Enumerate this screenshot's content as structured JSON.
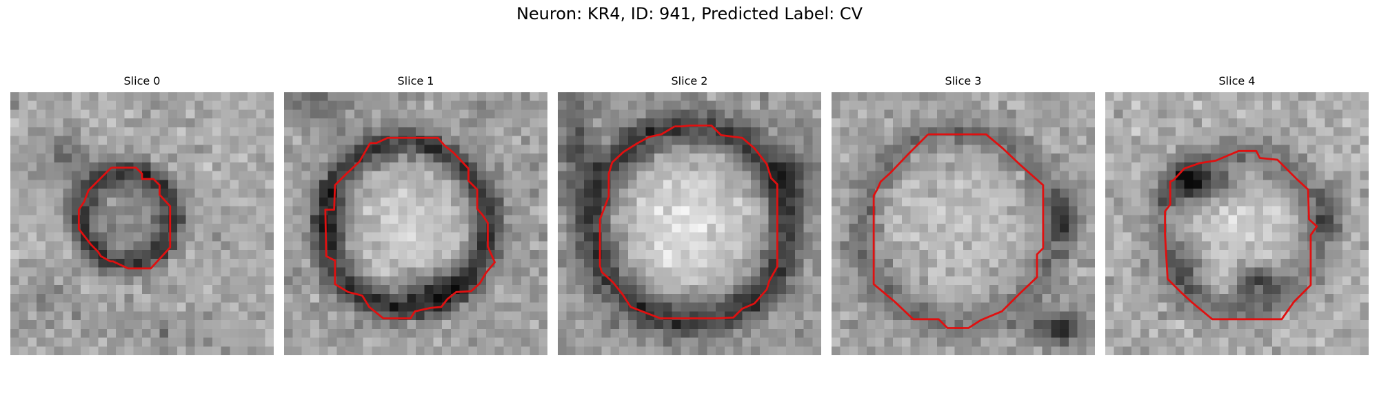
{
  "figure": {
    "title": "Neuron: KR4, ID: 941, Predicted Label: CV"
  },
  "colors": {
    "contour": "#e01010",
    "background": "#ffffff",
    "pixel_dark": "#111111",
    "pixel_light": "#f2f2f2"
  },
  "panels": [
    {
      "title": "Slice 0",
      "ring": "dark-ring-around-darker-disk",
      "seed": 11
    },
    {
      "title": "Slice 1",
      "ring": "dark-ring-around-bright-disk",
      "seed": 23
    },
    {
      "title": "Slice 2",
      "ring": "dark-ring-around-bright-disk",
      "seed": 37
    },
    {
      "title": "Slice 3",
      "ring": "faint-ring-around-bright-disk",
      "seed": 53
    },
    {
      "title": "Slice 4",
      "ring": "dark-arc-upper-left-and-bottom",
      "seed": 71
    }
  ]
}
